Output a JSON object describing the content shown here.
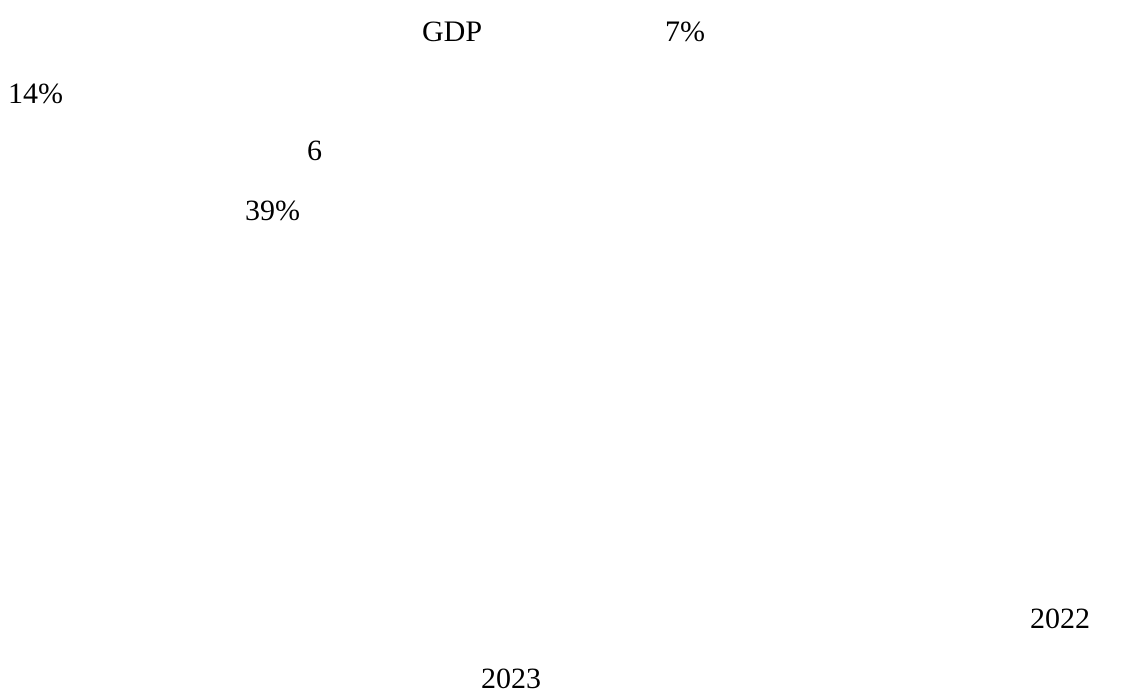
{
  "document": {
    "fragments": {
      "gdp": "GDP",
      "pct_7": "7%",
      "pct_14": "14%",
      "num_6": "6",
      "pct_39": "39%",
      "year_2022": "2022",
      "year_2023": "2023"
    }
  }
}
